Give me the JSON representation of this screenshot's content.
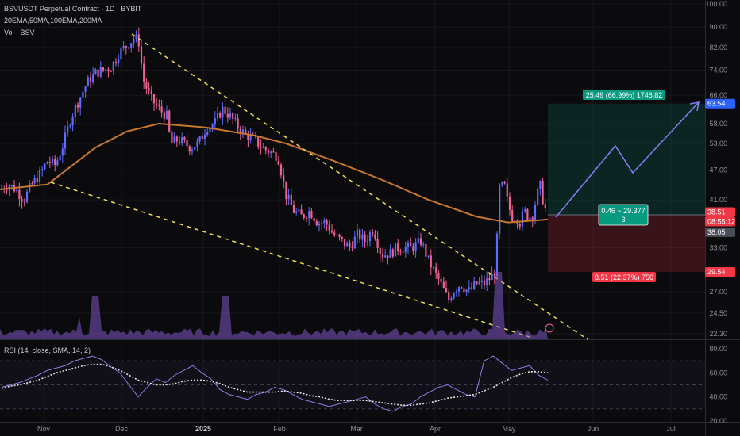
{
  "header": {
    "title": "BSVUSDT Perpetual Contract · 1D · BYBIT",
    "indicators": "20EMA,50MA,100EMA,200MA",
    "volume": "Vol · BSV",
    "rsi": "RSI (14, close, SMA, 14, 2)"
  },
  "chart_data": [
    {
      "type": "line",
      "title": "BSVUSDT Perpetual Contract · 1D · BYBIT",
      "x": [
        "Nov",
        "Dec",
        "2025",
        "Feb",
        "Mar",
        "Apr",
        "May",
        "Jun",
        "Jul"
      ],
      "y_ticks": [
        "100.00",
        "90.00",
        "82.00",
        "74.00",
        "66.00",
        "58.00",
        "53.00",
        "47.00",
        "41.00",
        "33.00",
        "27.00",
        "24.50",
        "22.30"
      ],
      "y_scale": "log",
      "ylim": [
        22.3,
        100
      ],
      "series": [
        {
          "approx_daily_close_path": [
            [
              0,
              43
            ],
            [
              10,
              44
            ],
            [
              20,
              43
            ],
            [
              30,
              41
            ],
            [
              40,
              44
            ],
            [
              50,
              46
            ],
            [
              60,
              49
            ],
            [
              70,
              48
            ],
            [
              80,
              53
            ],
            [
              90,
              60
            ],
            [
              100,
              65
            ],
            [
              110,
              70
            ],
            [
              120,
              73
            ],
            [
              130,
              74
            ],
            [
              140,
              75
            ],
            [
              150,
              80
            ],
            [
              160,
              83
            ],
            [
              170,
              86
            ],
            [
              175,
              84
            ],
            [
              180,
              71
            ],
            [
              190,
              65
            ],
            [
              200,
              62
            ],
            [
              210,
              60
            ],
            [
              215,
              53
            ],
            [
              225,
              54
            ],
            [
              240,
              52
            ],
            [
              250,
              53
            ],
            [
              260,
              57
            ],
            [
              270,
              58
            ],
            [
              280,
              62
            ],
            [
              290,
              60
            ],
            [
              300,
              57
            ],
            [
              310,
              55
            ],
            [
              320,
              54
            ],
            [
              330,
              52
            ],
            [
              340,
              51
            ],
            [
              350,
              50
            ],
            [
              360,
              42
            ],
            [
              370,
              39
            ],
            [
              380,
              38
            ],
            [
              390,
              39
            ],
            [
              400,
              37
            ],
            [
              410,
              37
            ],
            [
              420,
              35
            ],
            [
              430,
              34
            ],
            [
              440,
              33
            ],
            [
              450,
              35
            ],
            [
              460,
              34
            ],
            [
              470,
              36
            ],
            [
              480,
              32
            ],
            [
              490,
              32
            ],
            [
              500,
              33
            ],
            [
              510,
              33
            ],
            [
              520,
              33
            ],
            [
              530,
              34
            ],
            [
              540,
              31
            ],
            [
              550,
              29
            ],
            [
              560,
              27
            ],
            [
              565,
              26
            ],
            [
              570,
              27
            ],
            [
              580,
              28
            ],
            [
              590,
              27
            ],
            [
              600,
              28
            ],
            [
              610,
              28
            ],
            [
              620,
              29
            ],
            [
              625,
              30
            ],
            [
              628,
              43
            ],
            [
              635,
              44
            ],
            [
              640,
              40
            ],
            [
              645,
              38
            ],
            [
              650,
              38
            ],
            [
              655,
              37
            ],
            [
              660,
              39
            ],
            [
              665,
              38
            ],
            [
              670,
              38
            ],
            [
              675,
              41
            ],
            [
              680,
              44
            ],
            [
              685,
              40
            ],
            [
              690,
              38
            ]
          ]
        }
      ],
      "levels": [
        {
          "label": "63.54",
          "color": "#2962ff"
        },
        {
          "label": "38.51",
          "color": "#f23645"
        },
        {
          "label": "08:55:12",
          "color": "#f23645"
        },
        {
          "label": "38.05",
          "color": "#4a4d57"
        },
        {
          "label": "29.54",
          "color": "#f23645"
        }
      ],
      "annotations": [
        {
          "text": "25.49 (66.99%) 1748.82",
          "color": "#089981"
        },
        {
          "text": "0.46 ~ 29.377",
          "color": "#089981"
        },
        {
          "text": "3",
          "color": "#089981"
        },
        {
          "text": "8.51 (22.37%) 750",
          "color": "#f23645"
        }
      ],
      "colors": {
        "up": "#5b6cff",
        "down": "#f06292",
        "ma": "#c8762e",
        "trend": "#f0e04a"
      }
    },
    {
      "type": "line",
      "title": "RSI (14, close, SMA, 14, 2)",
      "y_ticks": [
        "80.00",
        "60.00",
        "40.00",
        "20.00"
      ],
      "ylim": [
        20,
        80
      ],
      "series": [
        {
          "name": "RSI",
          "values": [
            48,
            50,
            52,
            55,
            58,
            62,
            64,
            66,
            70,
            72,
            74,
            71,
            65,
            60,
            50,
            40,
            48,
            55,
            52,
            58,
            62,
            66,
            60,
            55,
            46,
            42,
            40,
            38,
            42,
            44,
            48,
            46,
            42,
            38,
            36,
            34,
            32,
            34,
            36,
            38,
            40,
            34,
            30,
            28,
            32,
            34,
            40,
            44,
            48,
            50,
            46,
            42,
            40,
            70,
            74,
            68,
            62,
            64,
            66,
            58,
            54
          ]
        },
        {
          "name": "RSI-based MA",
          "values": [
            47,
            49,
            50,
            52,
            54,
            57,
            60,
            62,
            64,
            66,
            67,
            67,
            65,
            62,
            58,
            54,
            52,
            50,
            50,
            51,
            53,
            54,
            54,
            53,
            51,
            48,
            46,
            44,
            44,
            44,
            44,
            45,
            44,
            43,
            41,
            40,
            38,
            37,
            37,
            37,
            37,
            36,
            35,
            34,
            33,
            33,
            34,
            35,
            37,
            39,
            40,
            41,
            42,
            45,
            48,
            52,
            56,
            59,
            61,
            61,
            60
          ]
        }
      ]
    }
  ],
  "time_axis": [
    "Nov",
    "Dec",
    "2025",
    "Feb",
    "Mar",
    "Apr",
    "May",
    "Jun",
    "Jul"
  ]
}
